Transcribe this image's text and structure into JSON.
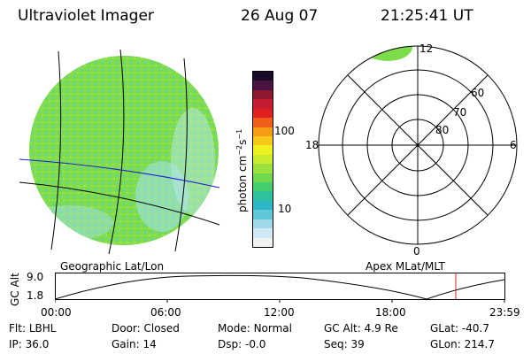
{
  "header": {
    "instrument": "Ultraviolet Imager",
    "date": "26 Aug 07",
    "time": "21:25:41 UT"
  },
  "colorbar": {
    "unit": "photon cm",
    "unit_exp1": "−2",
    "unit_mid": "s",
    "unit_exp2": "−1",
    "ticks": [
      "100",
      "10"
    ],
    "colors": [
      "#f2f2f2",
      "#cfe8f3",
      "#9fd9ea",
      "#5fc8d6",
      "#2fb6c6",
      "#2fc29e",
      "#45cf6c",
      "#6fd84f",
      "#9be23c",
      "#c9ec2e",
      "#eef01f",
      "#f7c81a",
      "#f79a16",
      "#ee5e16",
      "#e02020",
      "#c41c30",
      "#8f1830",
      "#4a1440",
      "#1a0a2a"
    ]
  },
  "polar": {
    "labels": [
      "12",
      "18",
      "6",
      "0",
      "60",
      "70",
      "80"
    ]
  },
  "map_labels": {
    "left": "Geographic Lat/Lon",
    "right": "Apex MLat/MLT"
  },
  "altitude_panel": {
    "ylabel": "GC Alt",
    "yticks": [
      "9.0",
      "1.8"
    ],
    "xticks": [
      "00:00",
      "06:00",
      "12:00",
      "18:00",
      "23:59"
    ]
  },
  "info": {
    "row1": [
      {
        "k": "Flt:",
        "v": "LBHL"
      },
      {
        "k": "Door:",
        "v": "Closed"
      },
      {
        "k": "Mode:",
        "v": "Normal"
      },
      {
        "k": "GC Alt:",
        "v": "4.9 Re"
      },
      {
        "k": "GLat:",
        "v": "-40.7"
      }
    ],
    "row2": [
      {
        "k": "IP:",
        "v": "36.0"
      },
      {
        "k": "Gain:",
        "v": "14"
      },
      {
        "k": "Dsp:",
        "v": "-0.0"
      },
      {
        "k": "Seq:",
        "v": "39"
      },
      {
        "k": "GLon:",
        "v": "214.7"
      }
    ]
  },
  "colors": {
    "aurora_green": "#7ddc4a",
    "aurora_cyan": "#6ed6e0",
    "time_marker": "#cc2020",
    "equator_line": "#2020cc"
  }
}
